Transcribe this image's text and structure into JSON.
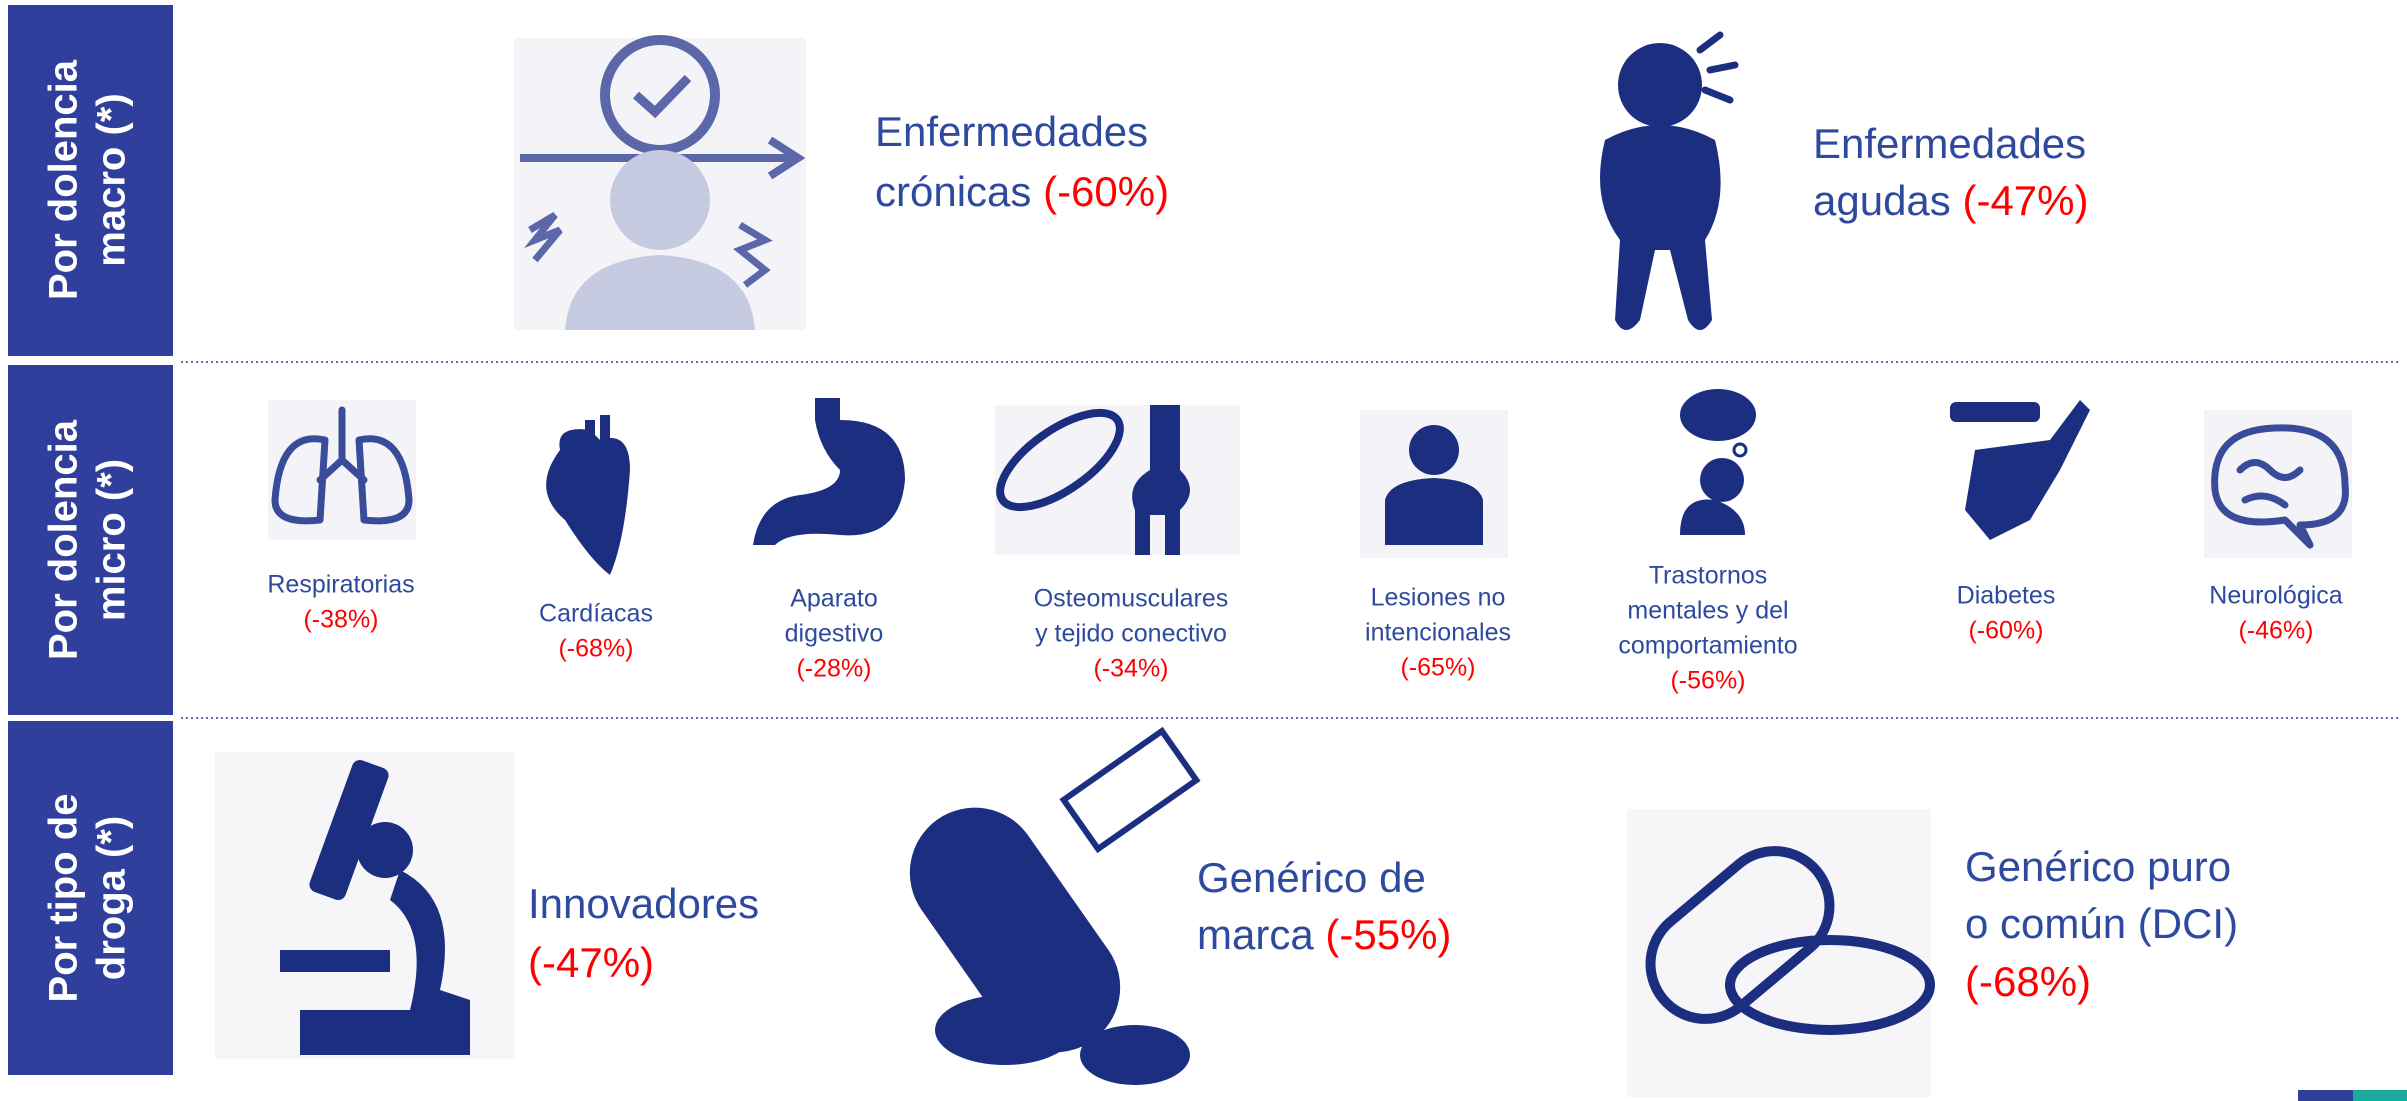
{
  "sections": [
    {
      "label_lines": [
        "Por dolencia",
        "macro (*)"
      ],
      "items": [
        {
          "label_lines": [
            "Enfermedades",
            "crónicas"
          ],
          "change": "(-60%)"
        },
        {
          "label_lines": [
            "Enfermedades",
            "agudas"
          ],
          "change": "(-47%)"
        }
      ]
    },
    {
      "label_lines": [
        "Por dolencia",
        "micro (*)"
      ],
      "items": [
        {
          "label_lines": [
            "Respiratorias"
          ],
          "change": "(-38%)"
        },
        {
          "label_lines": [
            "Cardíacas"
          ],
          "change": "(-68%)"
        },
        {
          "label_lines": [
            "Aparato",
            "digestivo"
          ],
          "change": "(-28%)"
        },
        {
          "label_lines": [
            "Osteomusculares",
            "y tejido conectivo"
          ],
          "change": "(-34%)"
        },
        {
          "label_lines": [
            "Lesiones no",
            "intencionales"
          ],
          "change": "(-65%)"
        },
        {
          "label_lines": [
            "Trastornos",
            "mentales y del",
            "comportamiento"
          ],
          "change": "(-56%)"
        },
        {
          "label_lines": [
            "Diabetes"
          ],
          "change": "(-60%)"
        },
        {
          "label_lines": [
            "Neurológica"
          ],
          "change": "(-46%)"
        }
      ]
    },
    {
      "label_lines": [
        "Por tipo de",
        "droga (*)"
      ],
      "items": [
        {
          "label_lines": [
            "Innovadores"
          ],
          "change": "(-47%)"
        },
        {
          "label_lines": [
            "Genérico de",
            "marca"
          ],
          "change": "(-55%)"
        },
        {
          "label_lines": [
            "Genérico puro",
            "o común (DCI)"
          ],
          "change": "(-68%)"
        }
      ]
    }
  ]
}
